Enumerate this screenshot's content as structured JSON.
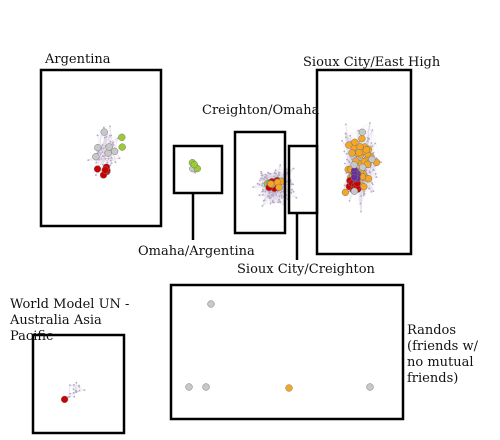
{
  "labels": {
    "argentina": "Argentina",
    "creighton_omaha": "Creighton/Omaha",
    "sioux_city_east_high": "Sioux City/East High",
    "omaha_argentina": "Omaha/Argentina",
    "sioux_city_creighton": "Sioux City/Creighton",
    "world_model_un": "World Model UN - Australia Asia Pacific",
    "randos": "Randos (friends w/ no mutual friends)"
  },
  "colors": {
    "gray": "#c8c8c8",
    "orange": "#f5a623",
    "red": "#cc0000",
    "green": "#9acd32",
    "purple": "#6a2c9c",
    "edge": "#d8d0e0",
    "small_node": "#b8a8c8"
  }
}
